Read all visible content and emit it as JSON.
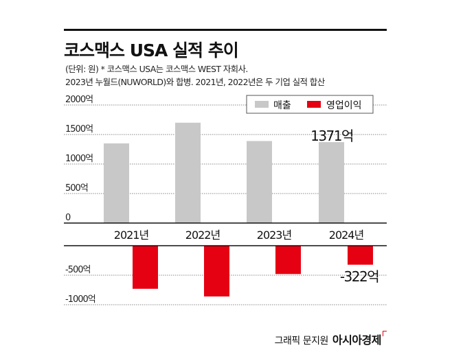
{
  "header": {
    "title": "코스맥스 USA 실적 추이",
    "note_line1": "(단위: 원)  * 코스맥스 USA는 코스맥스 WEST 자회사.",
    "note_line2": "2023년 누월드(NUWORLD)와 합병. 2021년, 2022년은 두 기업 실적 합산"
  },
  "footer": {
    "credit": "그래픽 문지원",
    "publisher": "아시아경제"
  },
  "colors": {
    "revenue": "#c8c8c8",
    "operating_profit": "#e50012"
  },
  "chart_data": {
    "type": "bar",
    "title": "코스맥스 USA 실적 추이",
    "categories": [
      "2021년",
      "2022년",
      "2023년",
      "2024년"
    ],
    "series": [
      {
        "name": "매출",
        "values": [
          1350,
          1700,
          1390,
          1371
        ]
      },
      {
        "name": "영업이익",
        "values": [
          -730,
          -860,
          -480,
          -322
        ]
      }
    ],
    "top_axis": {
      "ylim": [
        0,
        2000
      ],
      "ticks": [
        0,
        500,
        1000,
        1500,
        2000
      ],
      "tick_labels": [
        "0",
        "500억",
        "1000억",
        "1500억",
        "2000억"
      ]
    },
    "bottom_axis": {
      "ylim": [
        -1000,
        0
      ],
      "ticks": [
        -500,
        -1000
      ],
      "tick_labels": [
        "-500억",
        "-1000억"
      ]
    },
    "annotations": [
      {
        "category": "2024년",
        "series": "매출",
        "text": "1371억"
      },
      {
        "category": "2024년",
        "series": "영업이익",
        "text": "-322억"
      }
    ],
    "legend": {
      "placement": "top-right",
      "entries": [
        "매출",
        "영업이익"
      ]
    },
    "grid": true
  }
}
